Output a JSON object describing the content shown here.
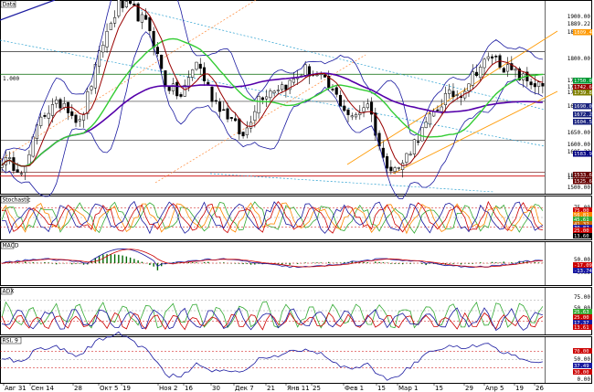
{
  "chart_data": [
    {
      "type": "candlestick",
      "title": "Data",
      "corner_label": "1.000",
      "axis_labels": [
        "1900.00",
        "1889.22",
        "1850.13",
        "1800.00",
        "1750.00",
        "1733.22",
        "1713.12",
        "1690.03",
        "1650.00",
        "1600.00",
        "1605.22",
        "1550.00",
        "1520.78",
        "1500.00"
      ],
      "price_tags": [
        {
          "value": "1809.41",
          "color": "#ff9900"
        },
        {
          "value": "1750.00",
          "color": "#009933"
        },
        {
          "value": "1742.64",
          "color": "#990000"
        },
        {
          "value": "1739.84",
          "color": "#808000"
        },
        {
          "value": "1690.03",
          "color": "#1a237e"
        },
        {
          "value": "1672.20",
          "color": "#1a237e"
        },
        {
          "value": "1604.50",
          "color": "#1a237e"
        },
        {
          "value": "1583.95",
          "color": "#000080"
        },
        {
          "value": "1533.62",
          "color": "#660000"
        },
        {
          "value": "1525.68",
          "color": "#660000"
        }
      ],
      "x_ticks": [
        "Авг 31",
        "Сен 14",
        "28",
        "Окт 5",
        "19",
        "Ноя 2",
        "16",
        "30",
        "Дек 7",
        "21",
        "Янв 11",
        "25",
        "Фев 1",
        "15",
        "Мар 1",
        "15",
        "29",
        "Апр 5",
        "19",
        "26"
      ],
      "series": [
        {
          "name": "price"
        },
        {
          "name": "ma-fast",
          "color": "#990000"
        },
        {
          "name": "ma-mid",
          "color": "#33cc33"
        },
        {
          "name": "ma-slow",
          "color": "#5500aa"
        },
        {
          "name": "bollinger",
          "color": "#1a1aa0"
        }
      ]
    },
    {
      "type": "line",
      "title": "Stochastic",
      "axis_labels": [
        "75.00",
        "50.00",
        "25.00"
      ],
      "tags": [
        {
          "value": "75.00",
          "color": "#cc0000"
        },
        {
          "value": "56.81",
          "color": "#ff8800"
        },
        {
          "value": "45.61",
          "color": "#33aa33"
        },
        {
          "value": "41.32",
          "color": "#cc6600"
        },
        {
          "value": "30.87",
          "color": "#1a1aa0"
        },
        {
          "value": "25.00",
          "color": "#cc0000"
        },
        {
          "value": "13.60",
          "color": "#000000"
        }
      ]
    },
    {
      "type": "bar",
      "title": "MACD",
      "axis_labels": [
        "50.00",
        "0.00"
      ],
      "tags": [
        {
          "value": "-17.09",
          "color": "#cc0000"
        },
        {
          "value": "-13.74",
          "color": "#1a1aa0"
        }
      ]
    },
    {
      "type": "line",
      "title": "ADX",
      "axis_labels": [
        "75.00",
        "50.00",
        "25.00"
      ],
      "tags": [
        {
          "value": "25.63",
          "color": "#33aa33"
        },
        {
          "value": "25.00",
          "color": "#cc0000"
        },
        {
          "value": "17.37",
          "color": "#1a1aa0"
        },
        {
          "value": "13.61",
          "color": "#cc0000"
        }
      ]
    },
    {
      "type": "line",
      "title": "RSI, 9",
      "axis_labels": [
        "50.00",
        "0.00"
      ],
      "tags": [
        {
          "value": "70.00",
          "color": "#cc0000"
        },
        {
          "value": "37.49",
          "color": "#1a1aa0"
        },
        {
          "value": "30.00",
          "color": "#cc0000"
        }
      ]
    }
  ]
}
